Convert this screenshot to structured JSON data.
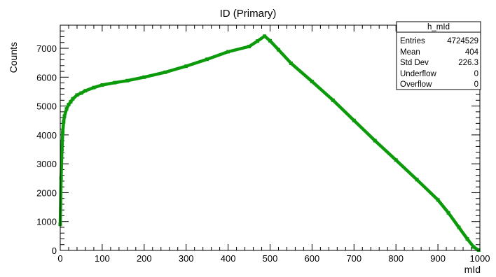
{
  "chart_data": {
    "type": "line",
    "title": "ID (Primary)",
    "xlabel": "mId",
    "ylabel": "Counts",
    "xlim": [
      0,
      1000
    ],
    "ylim": [
      0,
      7800
    ],
    "grid": false,
    "x_ticks": [
      0,
      100,
      200,
      300,
      400,
      500,
      600,
      700,
      800,
      900,
      1000
    ],
    "y_ticks": [
      0,
      1000,
      2000,
      3000,
      4000,
      5000,
      6000,
      7000
    ],
    "series": [
      {
        "color": "#0a9a0a",
        "points": [
          [
            0,
            900
          ],
          [
            2,
            2500
          ],
          [
            4,
            3500
          ],
          [
            6,
            4100
          ],
          [
            8,
            4450
          ],
          [
            10,
            4650
          ],
          [
            15,
            4900
          ],
          [
            20,
            5050
          ],
          [
            25,
            5150
          ],
          [
            30,
            5250
          ],
          [
            40,
            5380
          ],
          [
            50,
            5450
          ],
          [
            60,
            5530
          ],
          [
            80,
            5640
          ],
          [
            100,
            5730
          ],
          [
            130,
            5810
          ],
          [
            160,
            5880
          ],
          [
            200,
            6000
          ],
          [
            250,
            6170
          ],
          [
            300,
            6380
          ],
          [
            350,
            6620
          ],
          [
            400,
            6880
          ],
          [
            450,
            7060
          ],
          [
            470,
            7250
          ],
          [
            487,
            7420
          ],
          [
            500,
            7260
          ],
          [
            520,
            6950
          ],
          [
            550,
            6480
          ],
          [
            600,
            5850
          ],
          [
            650,
            5200
          ],
          [
            700,
            4500
          ],
          [
            750,
            3800
          ],
          [
            800,
            3130
          ],
          [
            850,
            2450
          ],
          [
            900,
            1750
          ],
          [
            925,
            1300
          ],
          [
            950,
            800
          ],
          [
            970,
            400
          ],
          [
            985,
            120
          ],
          [
            997,
            10
          ]
        ]
      }
    ],
    "stats_box": {
      "title": "h_mId",
      "rows": [
        {
          "label": "Entries",
          "value": "4724529"
        },
        {
          "label": "Mean",
          "value": "404"
        },
        {
          "label": "Std Dev",
          "value": "226.3"
        },
        {
          "label": "Underflow",
          "value": "0"
        },
        {
          "label": "Overflow",
          "value": "0"
        }
      ]
    }
  }
}
